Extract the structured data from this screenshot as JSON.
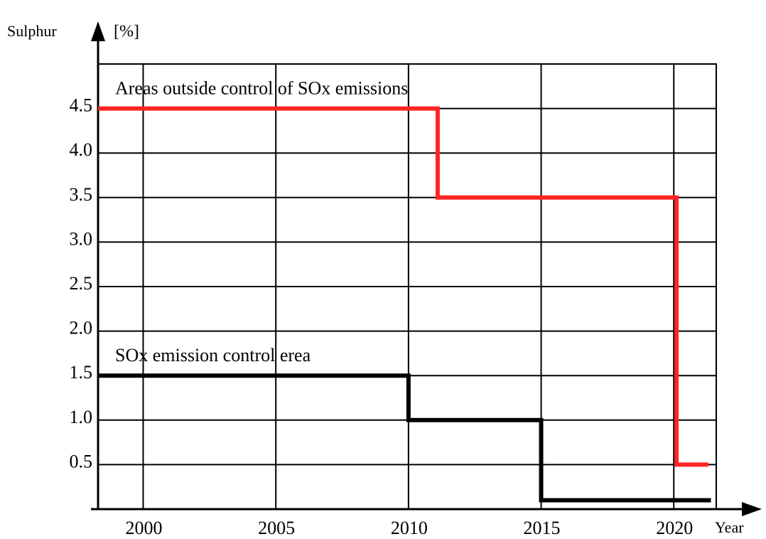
{
  "chart_data": {
    "type": "line",
    "step": true,
    "y_label": "Sulphur",
    "y_unit": "[%]",
    "x_label": "Year",
    "xlim": [
      1998.3,
      2021.6
    ],
    "xticks": [
      2000,
      2005,
      2010,
      2015,
      2020
    ],
    "ylim": [
      0,
      5
    ],
    "yticks": [
      0.5,
      {
        "value": 1,
        "label": "1.0"
      },
      1.5,
      {
        "value": 2,
        "label": "2.0"
      },
      2.5,
      {
        "value": 3,
        "label": "3.0"
      },
      3.5,
      {
        "value": 4,
        "label": "4.0"
      },
      4.5
    ],
    "grid": true,
    "series": [
      {
        "name": "Areas outside control of SOx emissions",
        "color": "#ff2424",
        "x": [
          1998.3,
          2011.1,
          2011.1,
          2020.1,
          2020.1,
          2021.3
        ],
        "values": [
          4.5,
          4.5,
          3.5,
          3.5,
          0.5,
          0.5
        ]
      },
      {
        "name": "SOx emission control erea",
        "color": "#000000",
        "x": [
          1998.3,
          2010,
          2010,
          2015,
          2015,
          2021.4
        ],
        "values": [
          1.5,
          1.5,
          1,
          1,
          0.1,
          0.1
        ]
      }
    ]
  }
}
